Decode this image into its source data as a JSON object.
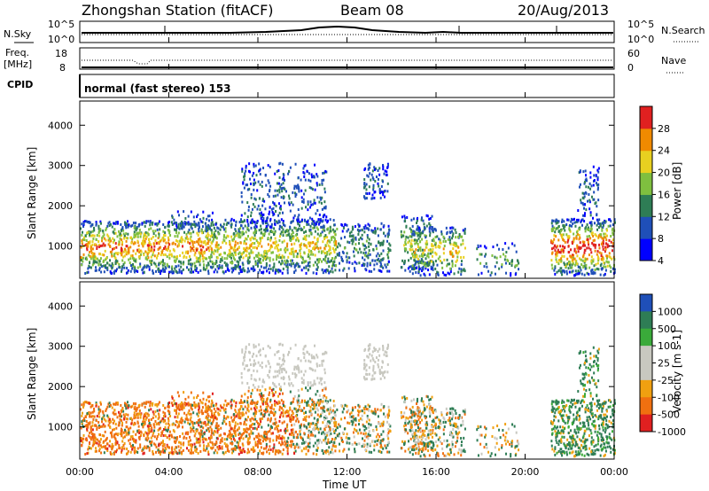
{
  "header": {
    "title": "Zhongshan Station (fitACF)",
    "beam": "Beam 08",
    "date": "20/Aug/2013"
  },
  "top_panel": {
    "left_label": "N.Sky",
    "right_label": "N.Search",
    "left_ticks": [
      "10^5",
      "10^0"
    ],
    "right_ticks": [
      "10^5",
      "10^0"
    ]
  },
  "freq_panel": {
    "left_label_1": "Freq.",
    "left_label_2": "[MHz]",
    "right_label": "Nave",
    "left_ticks": [
      "18",
      "8"
    ],
    "right_ticks": [
      "60",
      "0"
    ]
  },
  "cpid": {
    "label": "CPID",
    "text": "normal (fast stereo) 153"
  },
  "chart_data": [
    {
      "type": "heatmap",
      "name": "power",
      "ylabel": "Slant Range [km]",
      "yticks": [
        "4000",
        "3000",
        "2000",
        "1000"
      ],
      "ylim": [
        200,
        4600
      ],
      "colorbar_label": "Power [dB]",
      "colorbar_ticks": [
        "28",
        "24",
        "20",
        "16",
        "12",
        "8",
        "4"
      ],
      "colors": [
        "#0000ff",
        "#1f4fb8",
        "#2e7d55",
        "#7fbf3f",
        "#e8d020",
        "#f08a00",
        "#e02020"
      ]
    },
    {
      "type": "heatmap",
      "name": "velocity",
      "ylabel": "Slant Range [km]",
      "yticks": [
        "4000",
        "3000",
        "2000",
        "1000"
      ],
      "ylim": [
        200,
        4600
      ],
      "colorbar_label": "Velocity [m s-1]",
      "colorbar_ticks": [
        "1000",
        "500",
        "100",
        "25",
        "-25",
        "-100",
        "-500",
        "-1000"
      ],
      "colors": [
        "#1f4fb8",
        "#2e7d55",
        "#3aaa3a",
        "#c8c8c0",
        "#c8c8c0",
        "#f0a010",
        "#f07010",
        "#e02020"
      ]
    }
  ],
  "x_axis": {
    "ticks": [
      "00:00",
      "04:00",
      "08:00",
      "12:00",
      "16:00",
      "20:00",
      "00:00"
    ],
    "label": "Time UT"
  }
}
